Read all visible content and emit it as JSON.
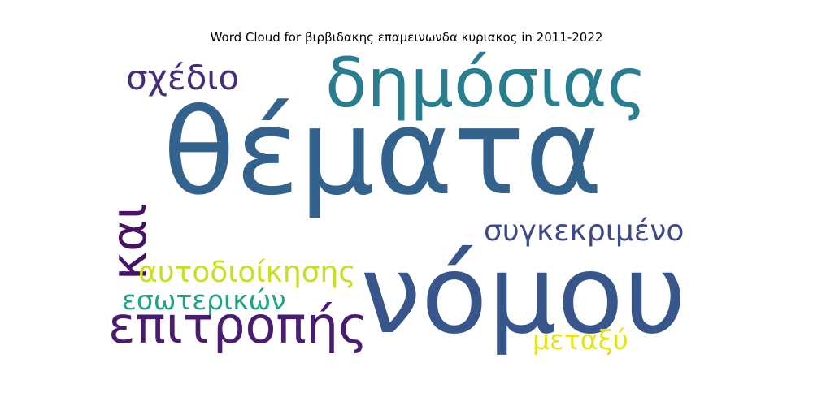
{
  "title": "Word Cloud for βιρβιδακης επαμεινωνδα κυριακος in 2011-2022",
  "chart_data": {
    "type": "wordcloud",
    "title": "Word Cloud for βιρβιδακης επαμεινωνδα κυριακος in 2011-2022",
    "words": [
      {
        "text": "θέματα",
        "weight": 1.0,
        "color": "#33638d",
        "orientation": "horizontal"
      },
      {
        "text": "νόμου",
        "weight": 0.9,
        "color": "#39568c",
        "orientation": "horizontal"
      },
      {
        "text": "δημόσιας",
        "weight": 0.6,
        "color": "#287d8e",
        "orientation": "horizontal"
      },
      {
        "text": "επιτροπής",
        "weight": 0.4,
        "color": "#481d6f",
        "orientation": "horizontal"
      },
      {
        "text": "και",
        "weight": 0.4,
        "color": "#471164",
        "orientation": "vertical"
      },
      {
        "text": "σχέδιο",
        "weight": 0.3,
        "color": "#472c7a",
        "orientation": "horizontal"
      },
      {
        "text": "συγκεκριμένο",
        "weight": 0.28,
        "color": "#3e4989",
        "orientation": "horizontal"
      },
      {
        "text": "αυτοδιοίκησης",
        "weight": 0.27,
        "color": "#c8e020",
        "orientation": "horizontal"
      },
      {
        "text": "εσωτερικών",
        "weight": 0.25,
        "color": "#20a386",
        "orientation": "horizontal"
      },
      {
        "text": "μεταξύ",
        "weight": 0.24,
        "color": "#e5e419",
        "orientation": "horizontal"
      }
    ]
  }
}
